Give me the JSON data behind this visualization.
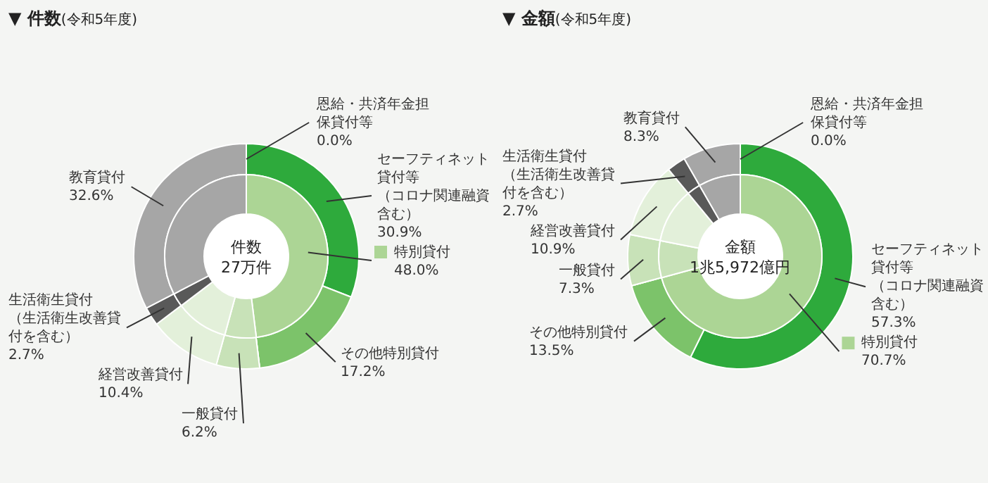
{
  "chart_data": [
    {
      "type": "donut",
      "title": "▼ 件数",
      "subtitle": "(令和5年度)",
      "annotations": [
        "件数\n27万件"
      ],
      "categories": [
        "恩給・共済年金担保貸付等",
        "セーフティネット貸付等（コロナ関連融資含む）",
        "その他特別貸付",
        "特別貸付",
        "一般貸付",
        "経営改善貸付",
        "生活衛生貸付（生活衛生改善貸付を含む）",
        "教育貸付"
      ],
      "series": [
        {
          "values": [
            0.0,
            30.9,
            17.2,
            null,
            6.2,
            10.4,
            2.7,
            32.6
          ],
          "colors": [
            "#2e9e3f",
            "#2eaa3c",
            "#7cc36a",
            "#acd595",
            "#c8e2b8",
            "#e3f0da",
            "#595959",
            "#a6a6a6"
          ],
          "value_labels": [
            "0.0%",
            "30.9%",
            "17.2%",
            null,
            "6.2%",
            "10.4%",
            "2.7%",
            "32.6%"
          ]
        },
        {
          "values": [
            0.0,
            null,
            null,
            48.0,
            6.2,
            10.4,
            2.7,
            32.6
          ],
          "colors": [
            "#2e9e3f",
            "#2eaa3c",
            "#7cc36a",
            "#acd595",
            "#c8e2b8",
            "#e3f0da",
            "#595959",
            "#a6a6a6"
          ],
          "value_labels": [
            null,
            null,
            null,
            "48.0%",
            null,
            null,
            null,
            null
          ]
        }
      ]
    },
    {
      "type": "donut",
      "title": "▼ 金額",
      "subtitle": "(令和5年度)",
      "annotations": [
        "金額\n1兆5,972億円"
      ],
      "categories": [
        "恩給・共済年金担保貸付等",
        "セーフティネット貸付等（コロナ関連融資含む）",
        "その他特別貸付",
        "特別貸付",
        "一般貸付",
        "経営改善貸付",
        "生活衛生貸付（生活衛生改善貸付を含む）",
        "教育貸付"
      ],
      "series": [
        {
          "values": [
            0.0,
            57.3,
            13.5,
            null,
            7.3,
            10.9,
            2.7,
            8.3
          ],
          "colors": [
            "#2e9e3f",
            "#2eaa3c",
            "#7cc36a",
            "#acd595",
            "#c8e2b8",
            "#e3f0da",
            "#595959",
            "#a6a6a6"
          ],
          "value_labels": [
            "0.0%",
            "57.3%",
            "13.5%",
            null,
            "7.3%",
            "10.9%",
            "2.7%",
            "8.3%"
          ]
        },
        {
          "values": [
            0.0,
            null,
            null,
            70.7,
            7.3,
            10.9,
            2.7,
            8.3
          ],
          "colors": [
            "#2e9e3f",
            "#2eaa3c",
            "#7cc36a",
            "#acd595",
            "#c8e2b8",
            "#e3f0da",
            "#595959",
            "#a6a6a6"
          ],
          "value_labels": [
            null,
            null,
            null,
            "70.7%",
            null,
            null,
            null,
            null
          ]
        }
      ]
    }
  ]
}
